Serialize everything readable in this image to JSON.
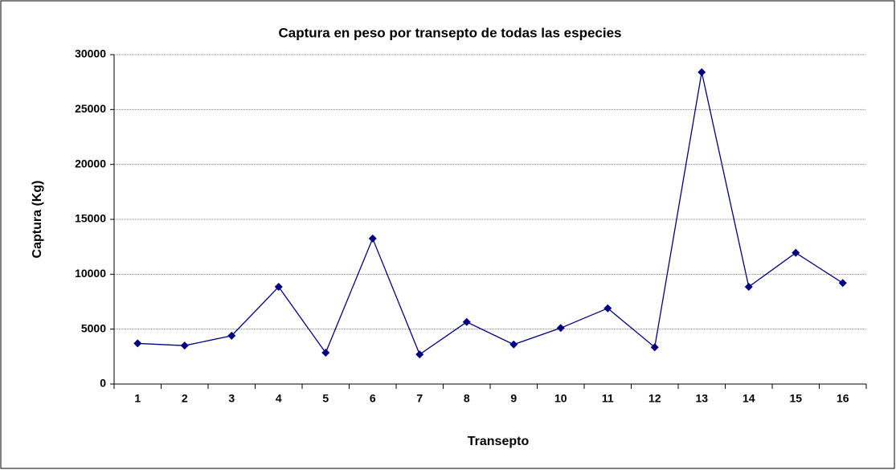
{
  "chart_data": {
    "type": "line",
    "title": "Captura en peso por transepto de todas las especies",
    "x_label": "Transepto",
    "y_label": "Captura (Kg)",
    "categories": [
      "1",
      "2",
      "3",
      "4",
      "5",
      "6",
      "7",
      "8",
      "9",
      "10",
      "11",
      "12",
      "13",
      "14",
      "15",
      "16"
    ],
    "series": [
      {
        "name": "Captura",
        "color": "#000080",
        "values": [
          3700,
          3500,
          4400,
          8850,
          2850,
          13250,
          2700,
          5650,
          3600,
          5100,
          6900,
          3350,
          28400,
          8850,
          11950,
          9200
        ]
      }
    ],
    "ylim": [
      0,
      30000
    ],
    "yticks": [
      0,
      5000,
      10000,
      15000,
      20000,
      25000,
      30000
    ],
    "grid": true
  }
}
